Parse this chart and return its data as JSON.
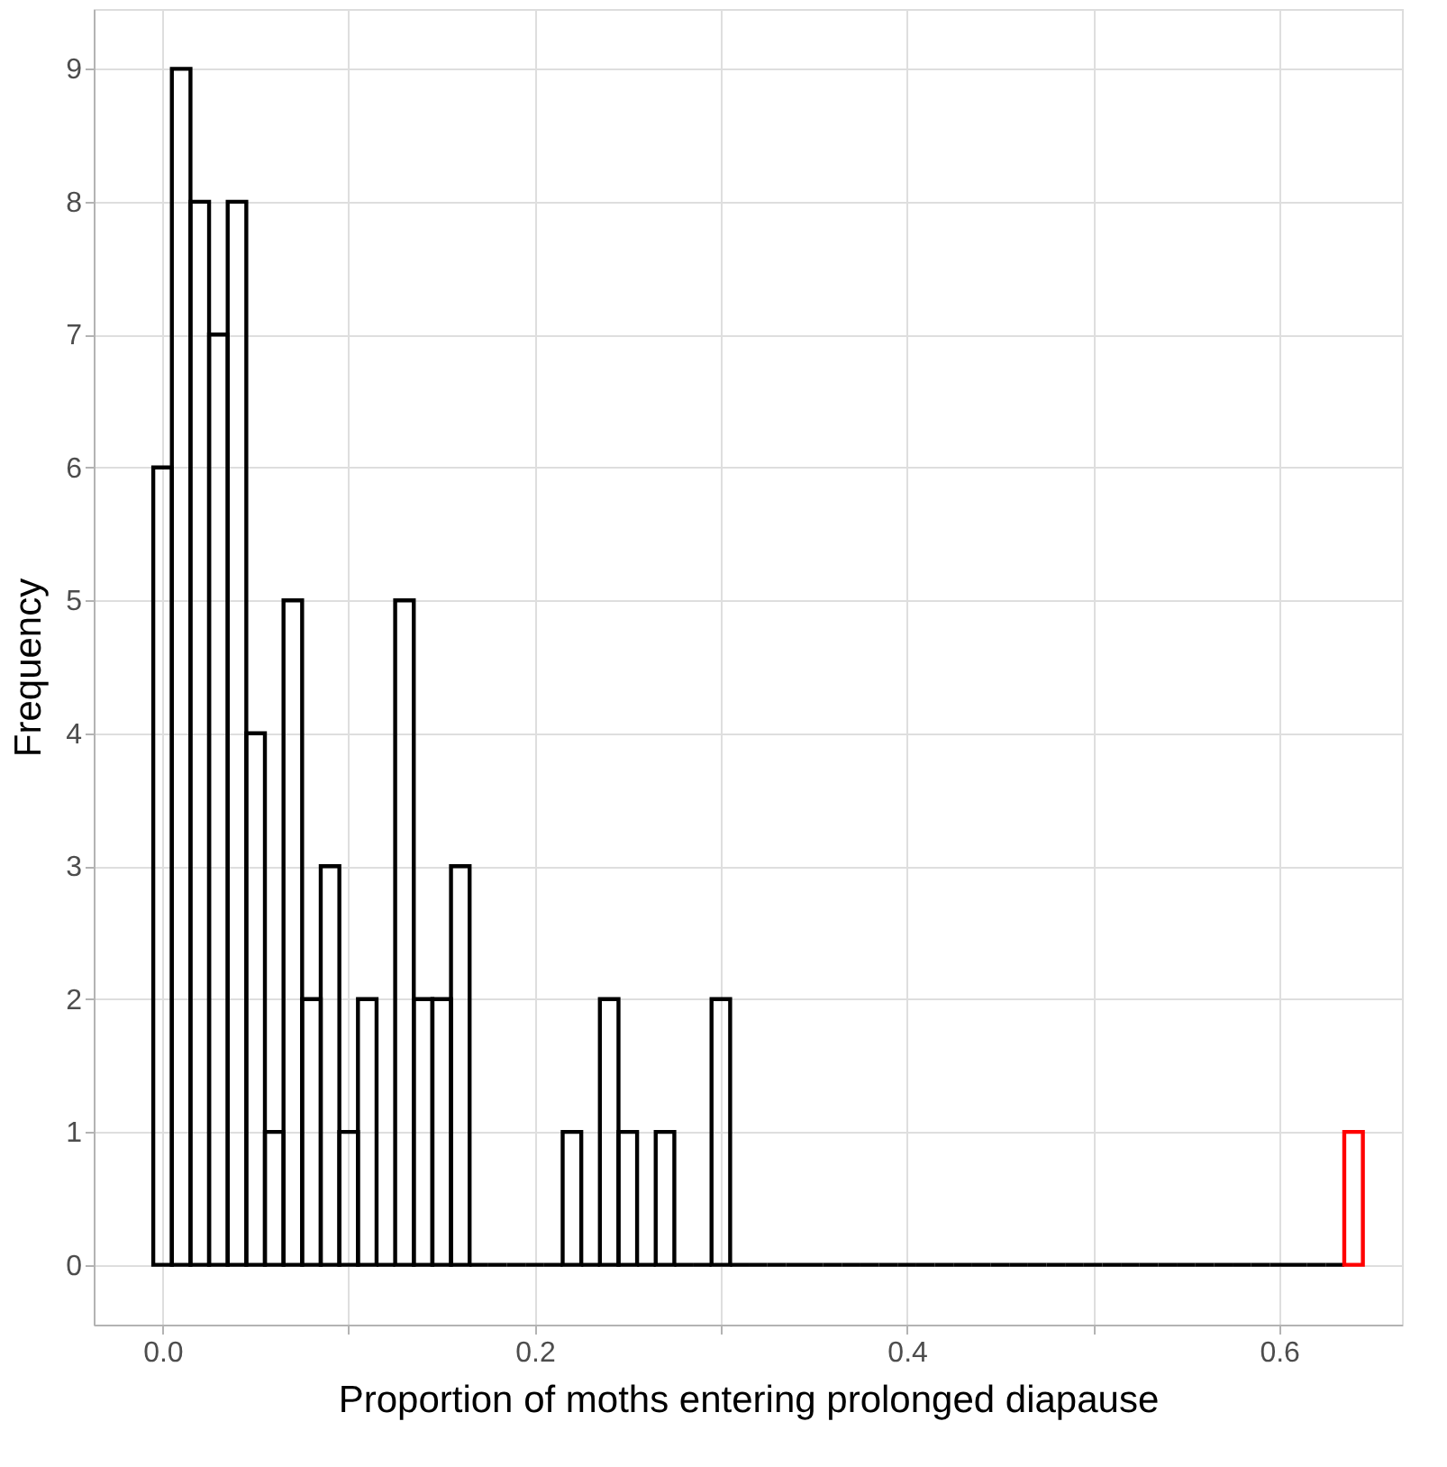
{
  "chart_data": {
    "type": "histogram",
    "xlabel": "Proportion of moths entering prolonged diapause",
    "ylabel": "Frequency",
    "bins": [
      -0.005,
      0.005,
      0.015,
      0.025,
      0.035,
      0.045,
      0.055,
      0.065,
      0.075,
      0.085,
      0.095,
      0.105,
      0.115,
      0.125,
      0.135,
      0.145,
      0.155,
      0.165,
      0.175,
      0.185,
      0.195,
      0.205,
      0.215,
      0.225,
      0.235,
      0.245,
      0.255,
      0.265,
      0.275,
      0.285,
      0.295,
      0.305,
      0.315,
      0.325,
      0.335,
      0.345,
      0.355,
      0.365,
      0.375,
      0.385,
      0.395,
      0.405,
      0.415,
      0.425,
      0.435,
      0.445,
      0.455,
      0.465,
      0.475,
      0.485,
      0.495,
      0.505,
      0.515,
      0.525,
      0.535,
      0.545,
      0.555,
      0.565,
      0.575,
      0.585,
      0.595,
      0.605,
      0.615,
      0.625,
      0.635,
      0.645
    ],
    "values": [
      6,
      9,
      8,
      7,
      8,
      4,
      1,
      5,
      2,
      3,
      1,
      2,
      0,
      5,
      2,
      2,
      3,
      0,
      0,
      0,
      0,
      0,
      1,
      0,
      2,
      1,
      0,
      1,
      0,
      0,
      2,
      0,
      0,
      0,
      0,
      0,
      0,
      0,
      0,
      0,
      0,
      0,
      0,
      0,
      0,
      0,
      0,
      0,
      0,
      0,
      0,
      0,
      0,
      0,
      0,
      0,
      0,
      0,
      0,
      0,
      0,
      0,
      0,
      0,
      1
    ],
    "colors": [
      "#000000",
      "#000000",
      "#000000",
      "#000000",
      "#000000",
      "#000000",
      "#000000",
      "#000000",
      "#000000",
      "#000000",
      "#000000",
      "#000000",
      "#000000",
      "#000000",
      "#000000",
      "#000000",
      "#000000",
      "#000000",
      "#000000",
      "#000000",
      "#000000",
      "#000000",
      "#000000",
      "#000000",
      "#000000",
      "#000000",
      "#000000",
      "#000000",
      "#000000",
      "#000000",
      "#000000",
      "#000000",
      "#000000",
      "#000000",
      "#000000",
      "#000000",
      "#000000",
      "#000000",
      "#000000",
      "#000000",
      "#000000",
      "#000000",
      "#000000",
      "#000000",
      "#000000",
      "#000000",
      "#000000",
      "#000000",
      "#000000",
      "#000000",
      "#000000",
      "#000000",
      "#000000",
      "#000000",
      "#000000",
      "#000000",
      "#000000",
      "#000000",
      "#000000",
      "#000000",
      "#000000",
      "#000000",
      "#000000",
      "#000000",
      "#ff0000"
    ],
    "xlim": [
      -0.037,
      0.666
    ],
    "ylim": [
      -0.45,
      9.45
    ],
    "xticks": [
      {
        "value": 0,
        "label": "0.0"
      },
      {
        "value": 0.1,
        "label": null
      },
      0.2,
      {
        "value": 0.3,
        "label": null
      },
      0.4,
      {
        "value": 0.5,
        "label": null
      },
      0.6
    ],
    "yticks": [
      0,
      1,
      2,
      3,
      4,
      5,
      6,
      7,
      8,
      9
    ],
    "grid": true
  }
}
